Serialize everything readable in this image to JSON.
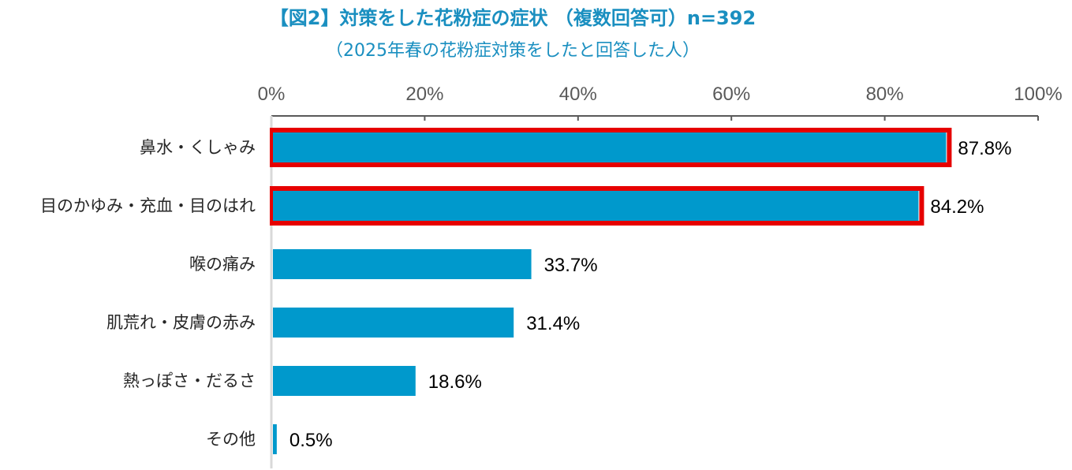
{
  "chart_data": {
    "type": "bar",
    "orientation": "horizontal",
    "title": "【図2】対策をした花粉症の症状 （複数回答可）n=392",
    "subtitle": "（2025年春の花粉症対策をしたと回答した人）",
    "categories": [
      "鼻水・くしゃみ",
      "目のかゆみ・充血・目のはれ",
      "喉の痛み",
      "肌荒れ・皮膚の赤み",
      "熱っぽさ・だるさ",
      "その他"
    ],
    "values": [
      87.8,
      84.2,
      33.7,
      31.4,
      18.6,
      0.5
    ],
    "value_labels": [
      "87.8%",
      "84.2%",
      "33.7%",
      "31.4%",
      "18.6%",
      "0.5%"
    ],
    "highlighted": [
      true,
      true,
      false,
      false,
      false,
      false
    ],
    "xlim": [
      0,
      100
    ],
    "x_ticks": [
      "0%",
      "20%",
      "40%",
      "60%",
      "80%",
      "100%"
    ],
    "x_axis_position": "top",
    "grid": false,
    "colors": {
      "bar": "#0099cc",
      "highlight_border": "#e60000",
      "title": "#1a8fc0",
      "axis": "#595959"
    }
  }
}
